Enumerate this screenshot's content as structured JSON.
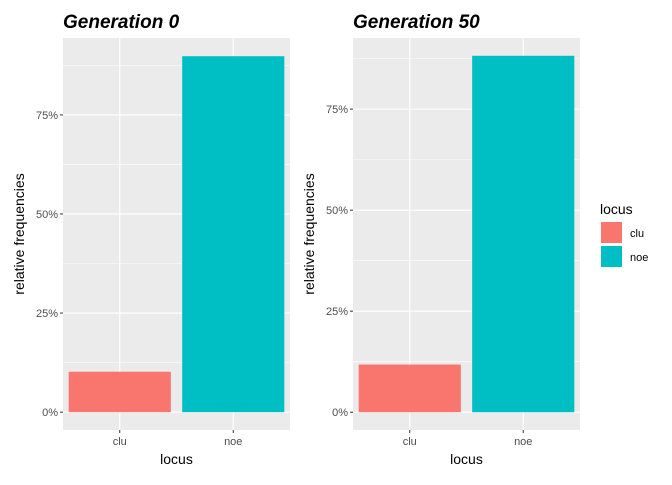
{
  "chart_data": [
    {
      "type": "bar",
      "title": "Generation 0",
      "xlabel": "locus",
      "ylabel": "relative frequencies",
      "categories": [
        "clu",
        "noe"
      ],
      "values": [
        0.102,
        0.898
      ],
      "colors": [
        "#F8766D",
        "#00BFC4"
      ],
      "ylim": [
        -0.045,
        0.944
      ],
      "yticks": [
        0,
        0.25,
        0.5,
        0.75
      ],
      "ytick_labels": [
        "0%",
        "25%",
        "50%",
        "75%"
      ],
      "grid": true
    },
    {
      "type": "bar",
      "title": "Generation 50",
      "xlabel": "locus",
      "ylabel": "relative frequencies",
      "categories": [
        "clu",
        "noe"
      ],
      "values": [
        0.118,
        0.882
      ],
      "colors": [
        "#F8766D",
        "#00BFC4"
      ],
      "ylim": [
        -0.044,
        0.926
      ],
      "yticks": [
        0,
        0.25,
        0.5,
        0.75
      ],
      "ytick_labels": [
        "0%",
        "25%",
        "50%",
        "75%"
      ],
      "grid": true
    }
  ],
  "legend": {
    "title": "locus",
    "position": "right",
    "items": [
      {
        "label": "clu",
        "color": "#F8766D"
      },
      {
        "label": "noe",
        "color": "#00BFC4"
      }
    ]
  },
  "theme": {
    "panel_bg": "#EBEBEB",
    "grid_major": "#FFFFFF",
    "tick_color": "#333333"
  }
}
